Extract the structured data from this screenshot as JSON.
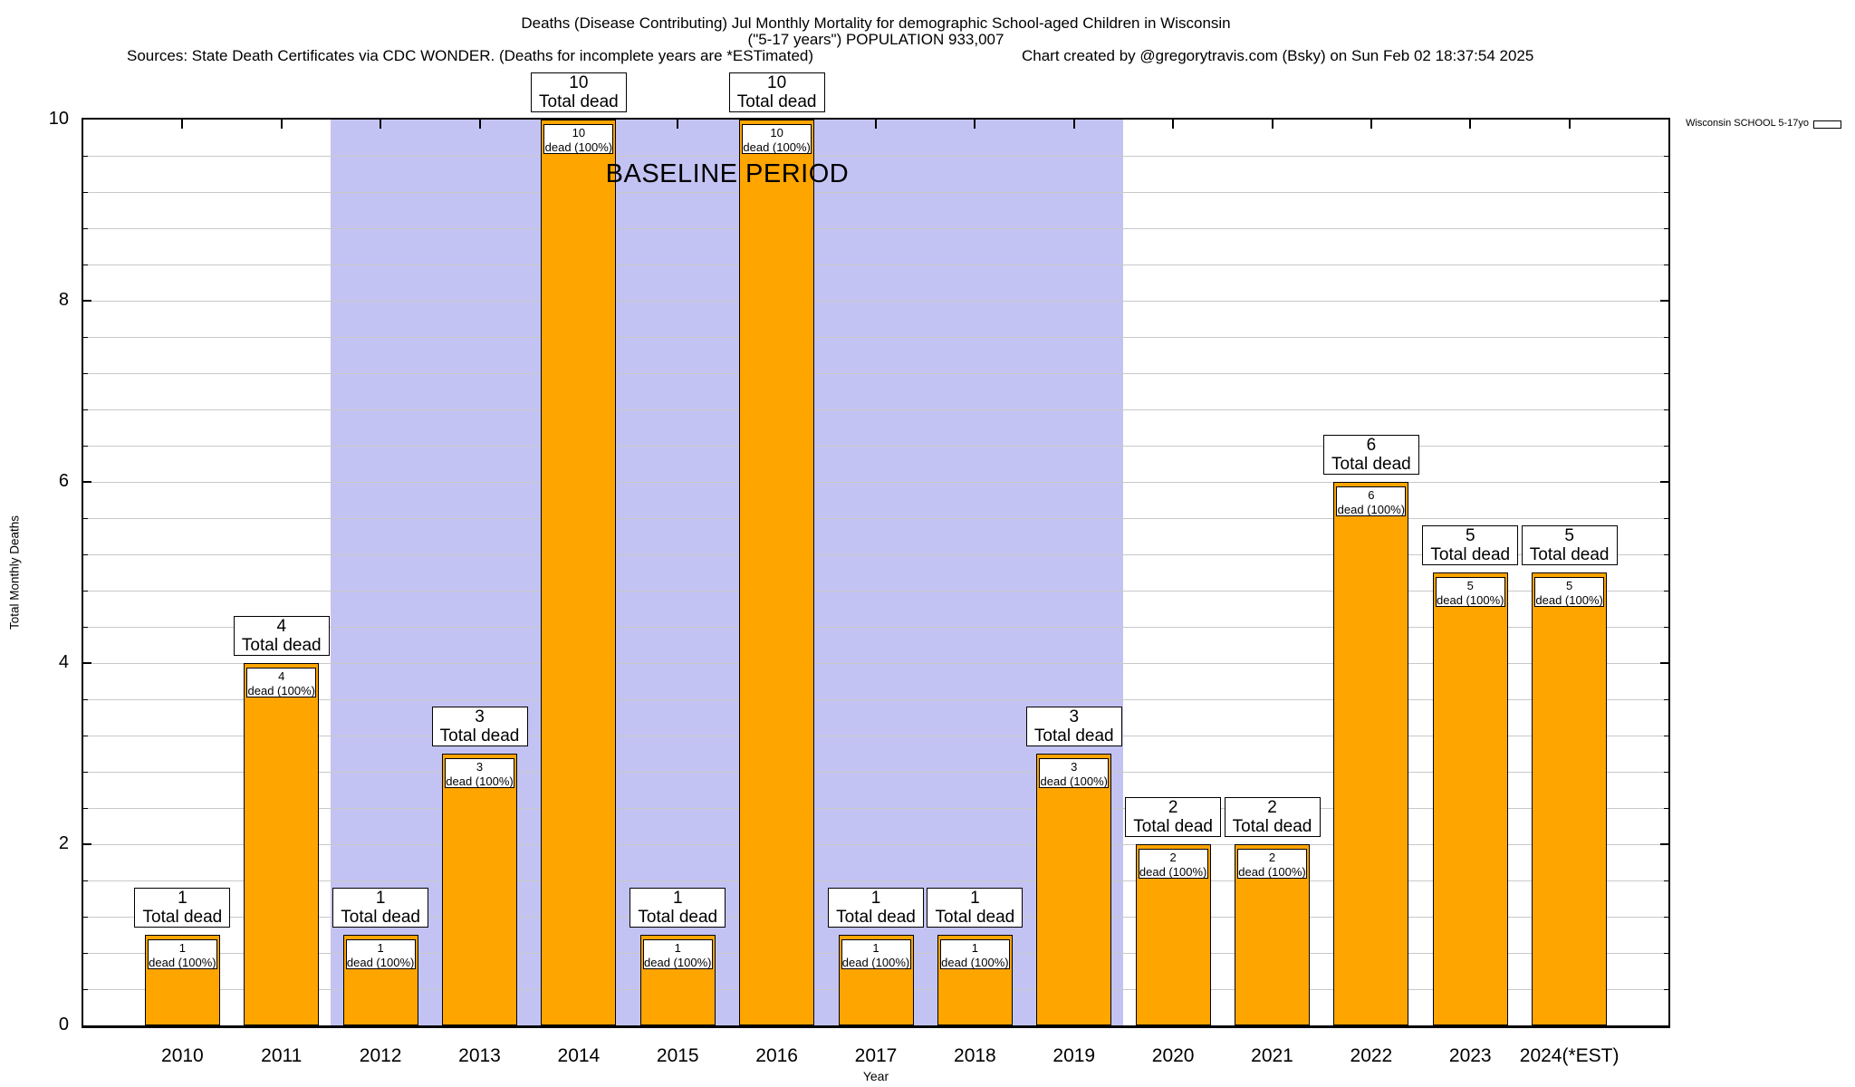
{
  "title": {
    "line1": "Deaths (Disease Contributing) Jul Monthly Mortality for demographic School-aged Children in Wisconsin",
    "line2": "(\"5-17 years\") POPULATION 933,007",
    "sources": "Sources: State Death Certificates via CDC WONDER. (Deaths for incomplete years are *ESTimated)",
    "credit": "Chart created by @gregorytravis.com (Bsky) on Sun Feb 02 18:37:54 2025"
  },
  "legend": {
    "label": "Wisconsin SCHOOL 5-17yo",
    "swatch_color": "#FFA500"
  },
  "chart_data": {
    "type": "bar",
    "title": "Deaths (Disease Contributing) Jul Monthly Mortality for demographic School-aged Children in Wisconsin",
    "subtitle": "(\"5-17 years\") POPULATION 933,007",
    "xlabel": "Year",
    "ylabel": "Total Monthly Deaths",
    "ylim": [
      0,
      10
    ],
    "ytick_step": 2,
    "yminor_step": 0.4,
    "grid": "horizontal, light gray, every 0.4",
    "legend_position": "top-right outside plot",
    "bar_color": "#FFA500",
    "bar_border_color": "#000000",
    "categories": [
      "2010",
      "2011",
      "2012",
      "2013",
      "2014",
      "2015",
      "2016",
      "2017",
      "2018",
      "2019",
      "2020",
      "2021",
      "2022",
      "2023",
      "2024(*EST)"
    ],
    "values": [
      1,
      4,
      1,
      3,
      10,
      1,
      10,
      1,
      1,
      3,
      2,
      2,
      6,
      5,
      5
    ],
    "bars": [
      {
        "year": "2010",
        "value": 1,
        "above_line1": "1",
        "above_line2": "Total dead",
        "inside_line1": "1",
        "inside_line2": "dead (100%)"
      },
      {
        "year": "2011",
        "value": 4,
        "above_line1": "4",
        "above_line2": "Total dead",
        "inside_line1": "4",
        "inside_line2": "dead (100%)"
      },
      {
        "year": "2012",
        "value": 1,
        "above_line1": "1",
        "above_line2": "Total dead",
        "inside_line1": "1",
        "inside_line2": "dead (100%)"
      },
      {
        "year": "2013",
        "value": 3,
        "above_line1": "3",
        "above_line2": "Total dead",
        "inside_line1": "3",
        "inside_line2": "dead (100%)"
      },
      {
        "year": "2014",
        "value": 10,
        "above_line1": "10",
        "above_line2": "Total dead",
        "inside_line1": "10",
        "inside_line2": "dead (100%)"
      },
      {
        "year": "2015",
        "value": 1,
        "above_line1": "1",
        "above_line2": "Total dead",
        "inside_line1": "1",
        "inside_line2": "dead (100%)"
      },
      {
        "year": "2016",
        "value": 10,
        "above_line1": "10",
        "above_line2": "Total dead",
        "inside_line1": "10",
        "inside_line2": "dead (100%)"
      },
      {
        "year": "2017",
        "value": 1,
        "above_line1": "1",
        "above_line2": "Total dead",
        "inside_line1": "1",
        "inside_line2": "dead (100%)"
      },
      {
        "year": "2018",
        "value": 1,
        "above_line1": "1",
        "above_line2": "Total dead",
        "inside_line1": "1",
        "inside_line2": "dead (100%)"
      },
      {
        "year": "2019",
        "value": 3,
        "above_line1": "3",
        "above_line2": "Total dead",
        "inside_line1": "3",
        "inside_line2": "dead (100%)"
      },
      {
        "year": "2020",
        "value": 2,
        "above_line1": "2",
        "above_line2": "Total dead",
        "inside_line1": "2",
        "inside_line2": "dead (100%)"
      },
      {
        "year": "2021",
        "value": 2,
        "above_line1": "2",
        "above_line2": "Total dead",
        "inside_line1": "2",
        "inside_line2": "dead (100%)"
      },
      {
        "year": "2022",
        "value": 6,
        "above_line1": "6",
        "above_line2": "Total dead",
        "inside_line1": "6",
        "inside_line2": "dead (100%)"
      },
      {
        "year": "2023",
        "value": 5,
        "above_line1": "5",
        "above_line2": "Total dead",
        "inside_line1": "5",
        "inside_line2": "dead (100%)"
      },
      {
        "year": "2024(*EST)",
        "value": 5,
        "above_line1": "5",
        "above_line2": "Total dead",
        "inside_line1": "5",
        "inside_line2": "dead (100%)"
      }
    ],
    "baseline_band": {
      "label": "BASELINE PERIOD",
      "from_category_boundary": 1.5,
      "to_category_boundary": 9.5,
      "covers_years": [
        "2012",
        "2013",
        "2014",
        "2015",
        "2016",
        "2017",
        "2018",
        "2019"
      ],
      "color": "#C3C3F3"
    },
    "yticks": [
      "0",
      "2",
      "4",
      "6",
      "8",
      "10"
    ]
  }
}
